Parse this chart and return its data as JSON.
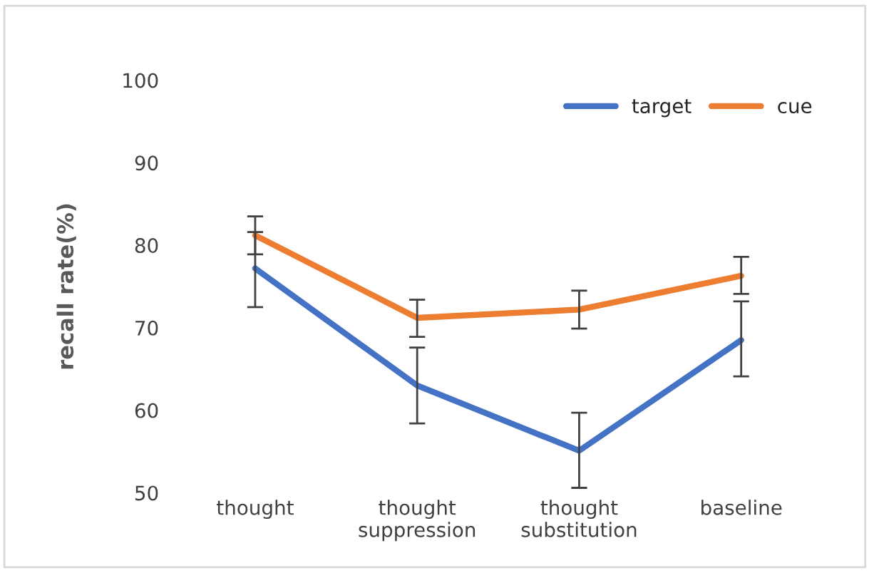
{
  "chart_data": {
    "type": "line",
    "ylabel": "recall rate(%)",
    "categories": [
      "thought",
      "thought\nsuppression",
      "thought\nsubstitution",
      "baseline"
    ],
    "series": [
      {
        "name": "target",
        "color": "#4472c4",
        "values": [
          77.2,
          63.0,
          55.1,
          68.5
        ],
        "errors": [
          [
            72.5,
            81.6
          ],
          [
            58.4,
            67.6
          ],
          [
            50.6,
            59.7
          ],
          [
            64.1,
            73.2
          ]
        ]
      },
      {
        "name": "cue",
        "color": "#ed7d31",
        "values": [
          81.2,
          71.2,
          72.2,
          76.3
        ],
        "errors": [
          [
            78.9,
            83.5
          ],
          [
            68.9,
            73.4
          ],
          [
            69.9,
            74.5
          ],
          [
            74.1,
            78.6
          ]
        ]
      }
    ],
    "ylim": [
      50,
      100
    ],
    "yticks": [
      50,
      60,
      70,
      80,
      90,
      100
    ],
    "grid": false,
    "legend": "top right",
    "marker": "none",
    "line_style": "solid"
  }
}
